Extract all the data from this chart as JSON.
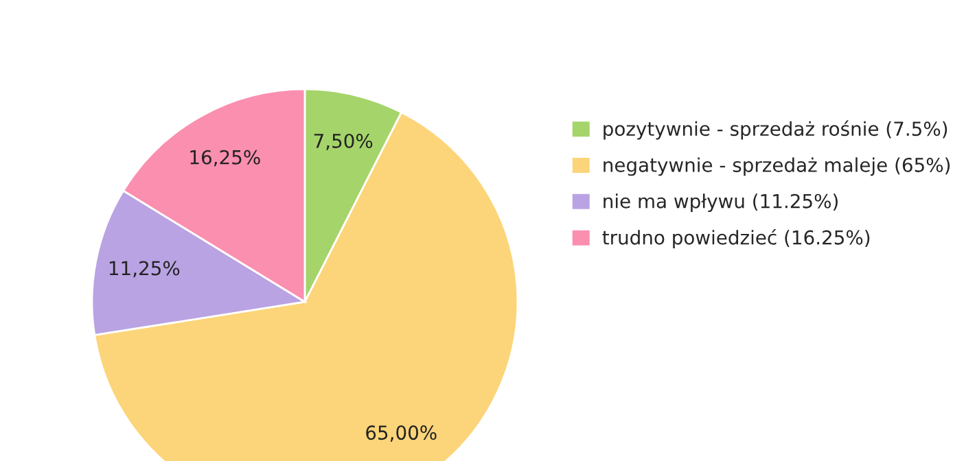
{
  "chart_data": {
    "type": "pie",
    "categories": [
      "pozytywnie - sprzedaż rośnie (7.5%)",
      "negatywnie - sprzedaż maleje (65%)",
      "nie ma wpływu (11.25%)",
      "trudno powiedzieć (16.25%)"
    ],
    "values": [
      7.5,
      65,
      11.25,
      16.25
    ],
    "colors": [
      "#a5d46a",
      "#fcd57a",
      "#b9a3e3",
      "#fb8fb0"
    ],
    "value_labels": [
      "7,50%",
      "65,00%",
      "11,25%",
      "16,25%"
    ],
    "legend": "right"
  }
}
